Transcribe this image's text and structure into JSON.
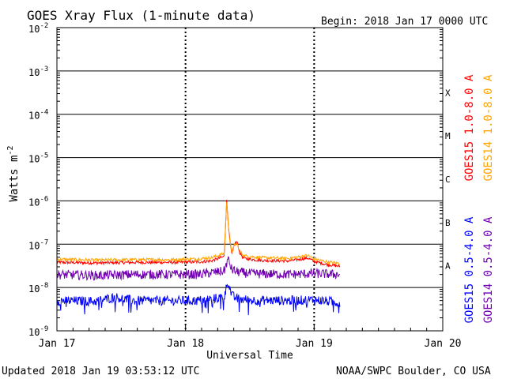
{
  "header": {
    "title": "GOES Xray Flux (1-minute data)",
    "begin": "Begin:  2018 Jan 17 0000 UTC"
  },
  "footer": {
    "updated": "Updated 2018 Jan 19 03:53:12 UTC",
    "credit": "NOAA/SWPC Boulder, CO USA"
  },
  "chart_data": {
    "type": "line",
    "title": "GOES Xray Flux (1-minute data)",
    "xlabel": "Universal Time",
    "ylabel": "Watts m",
    "ylabel_superscript": "-2",
    "y_scale": "log",
    "ylim": [
      1e-09,
      0.01
    ],
    "x_ticks": [
      "Jan 17",
      "Jan 18",
      "Jan 19",
      "Jan 20"
    ],
    "xlim_days": [
      0,
      3
    ],
    "y_ticks": [
      {
        "base": "10",
        "exp": "-2"
      },
      {
        "base": "10",
        "exp": "-3"
      },
      {
        "base": "10",
        "exp": "-4"
      },
      {
        "base": "10",
        "exp": "-5"
      },
      {
        "base": "10",
        "exp": "-6"
      },
      {
        "base": "10",
        "exp": "-7"
      },
      {
        "base": "10",
        "exp": "-8"
      },
      {
        "base": "10",
        "exp": "-9"
      }
    ],
    "flare_classes": [
      "X",
      "M",
      "C",
      "B",
      "A"
    ],
    "grid": true,
    "series": [
      {
        "name": "GOES15 1.0-8.0 A",
        "color": "#ff0000",
        "x": [
          0,
          0.3,
          0.6,
          0.9,
          1.1,
          1.2,
          1.3,
          1.32,
          1.34,
          1.36,
          1.38,
          1.4,
          1.42,
          1.45,
          1.5,
          1.6,
          1.8,
          1.95,
          2.0,
          2.1,
          2.2
        ],
        "y": [
          3.8e-08,
          3.7e-08,
          3.8e-08,
          3.8e-08,
          3.9e-08,
          4.1e-08,
          5.2e-08,
          1e-06,
          1.6e-07,
          5.5e-08,
          1e-07,
          1.15e-07,
          6.5e-08,
          4.8e-08,
          4.5e-08,
          4.2e-08,
          4.1e-08,
          4.8e-08,
          4e-08,
          3.4e-08,
          3.1e-08
        ]
      },
      {
        "name": "GOES14 1.0-8.0 A",
        "color": "#ffa500",
        "x": [
          0,
          0.3,
          0.6,
          0.9,
          1.1,
          1.2,
          1.3,
          1.32,
          1.34,
          1.36,
          1.38,
          1.4,
          1.42,
          1.45,
          1.5,
          1.6,
          1.8,
          1.95,
          2.0,
          2.1,
          2.2
        ],
        "y": [
          4.5e-08,
          4.3e-08,
          4.4e-08,
          4.4e-08,
          4.6e-08,
          4.9e-08,
          6e-08,
          9e-07,
          1.5e-07,
          6.2e-08,
          9.5e-08,
          1.05e-07,
          7e-08,
          5.5e-08,
          5.2e-08,
          4.9e-08,
          4.7e-08,
          5.5e-08,
          4.6e-08,
          3.9e-08,
          3.6e-08
        ]
      },
      {
        "name": "GOES15 0.5-4.0 A",
        "color": "#0000ff",
        "x": [
          0,
          0.3,
          0.45,
          0.6,
          0.9,
          1.1,
          1.3,
          1.33,
          1.36,
          1.4,
          1.5,
          1.8,
          2.0,
          2.2
        ],
        "y": [
          5e-09,
          4.8e-09,
          6e-09,
          5e-09,
          4.9e-09,
          5e-09,
          6e-09,
          1.4e-08,
          6.5e-09,
          5.5e-09,
          5.1e-09,
          5e-09,
          5.2e-09,
          4.5e-09
        ]
      },
      {
        "name": "GOES14 0.5-4.0 A",
        "color": "#7000b0",
        "x": [
          0,
          0.3,
          0.6,
          0.9,
          1.1,
          1.3,
          1.33,
          1.36,
          1.4,
          1.5,
          1.8,
          2.0,
          2.2
        ],
        "y": [
          2e-08,
          1.9e-08,
          2e-08,
          2e-08,
          2e-08,
          2.4e-08,
          4.5e-08,
          2.6e-08,
          2.3e-08,
          2.1e-08,
          2e-08,
          2.1e-08,
          2e-08
        ]
      }
    ]
  }
}
